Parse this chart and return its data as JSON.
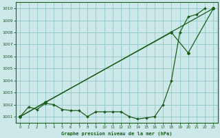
{
  "bg_color": "#cce8e8",
  "grid_color": "#99cccc",
  "line_color": "#1a5c1a",
  "xlabel": "Graphe pression niveau de la mer (hPa)",
  "ylim": [
    1000.5,
    1010.5
  ],
  "yticks": [
    1001,
    1002,
    1003,
    1004,
    1005,
    1006,
    1007,
    1008,
    1009,
    1010
  ],
  "xlim": [
    -0.5,
    23.5
  ],
  "xticks": [
    0,
    1,
    2,
    3,
    4,
    5,
    6,
    7,
    8,
    9,
    10,
    11,
    12,
    13,
    14,
    15,
    16,
    17,
    18,
    19,
    20,
    21,
    22,
    23
  ],
  "series1_x": [
    0,
    1,
    2,
    3,
    4,
    5,
    6,
    7,
    8,
    9,
    10,
    11,
    12,
    13,
    14,
    15,
    16,
    17,
    18,
    19,
    20,
    21,
    22
  ],
  "series1_y": [
    1001.0,
    1001.8,
    1001.6,
    1002.1,
    1002.0,
    1001.6,
    1001.5,
    1001.5,
    1001.0,
    1001.4,
    1001.4,
    1001.4,
    1001.4,
    1001.0,
    1000.8,
    1000.9,
    1001.0,
    1002.0,
    1004.0,
    1008.0,
    1009.3,
    1009.5,
    1010.0
  ],
  "series2_x": [
    0,
    23
  ],
  "series2_y": [
    1001.0,
    1010.0
  ],
  "series3_x": [
    0,
    3,
    18,
    20,
    23
  ],
  "series3_y": [
    1001.0,
    1002.2,
    1008.0,
    1006.3,
    1010.0
  ]
}
